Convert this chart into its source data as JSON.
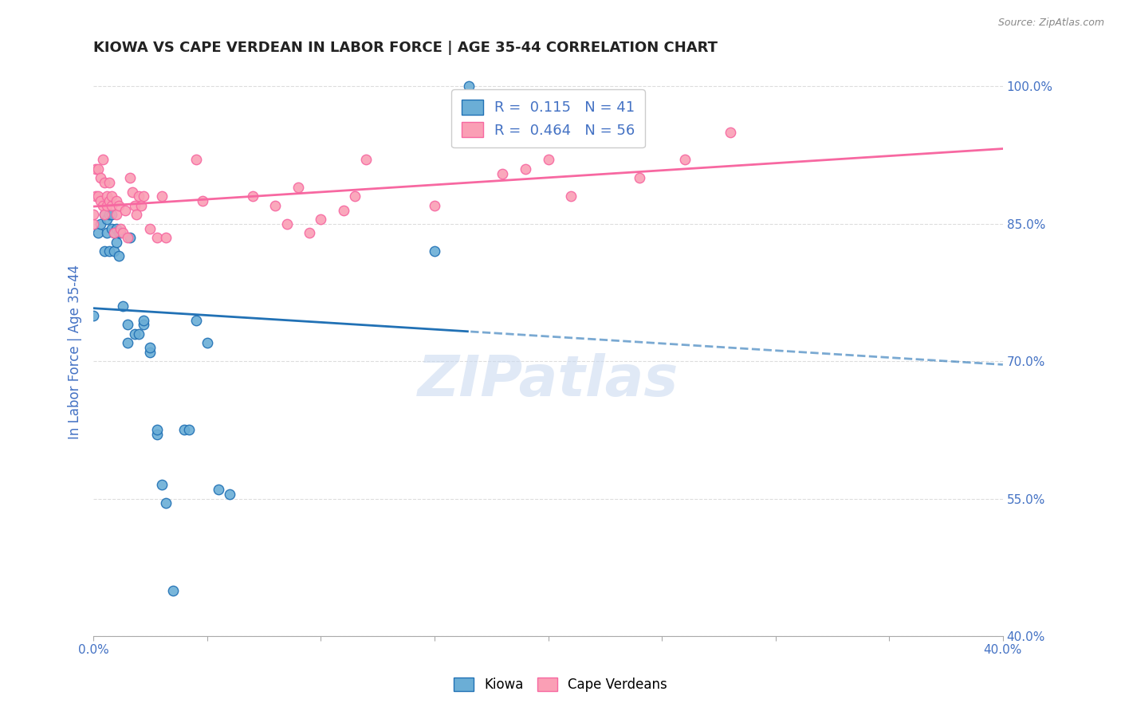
{
  "title": "KIOWA VS CAPE VERDEAN IN LABOR FORCE | AGE 35-44 CORRELATION CHART",
  "source": "Source: ZipAtlas.com",
  "ylabel": "In Labor Force | Age 35-44",
  "xlim": [
    0.0,
    0.4
  ],
  "ylim": [
    0.4,
    1.02
  ],
  "yticks_right": [
    0.4,
    0.55,
    0.7,
    0.85,
    1.0
  ],
  "ytick_right_labels": [
    "40.0%",
    "55.0%",
    "70.0%",
    "85.0%",
    "100.0%"
  ],
  "legend_r_blue": "0.115",
  "legend_n_blue": "41",
  "legend_r_pink": "0.464",
  "legend_n_pink": "56",
  "blue_color": "#6baed6",
  "pink_color": "#fa9fb5",
  "blue_line_color": "#2171b5",
  "pink_line_color": "#f768a1",
  "title_color": "#222222",
  "axis_label_color": "#4472c4",
  "watermark": "ZIPatlas",
  "kiowa_x": [
    0.0,
    0.002,
    0.003,
    0.005,
    0.005,
    0.006,
    0.006,
    0.007,
    0.007,
    0.008,
    0.008,
    0.009,
    0.009,
    0.01,
    0.01,
    0.011,
    0.011,
    0.012,
    0.013,
    0.015,
    0.015,
    0.016,
    0.018,
    0.02,
    0.022,
    0.022,
    0.025,
    0.025,
    0.028,
    0.028,
    0.03,
    0.032,
    0.035,
    0.04,
    0.042,
    0.045,
    0.05,
    0.055,
    0.06,
    0.15,
    0.165
  ],
  "kiowa_y": [
    0.75,
    0.84,
    0.85,
    0.82,
    0.86,
    0.84,
    0.855,
    0.82,
    0.86,
    0.845,
    0.86,
    0.82,
    0.84,
    0.83,
    0.845,
    0.815,
    0.84,
    0.84,
    0.76,
    0.72,
    0.74,
    0.835,
    0.73,
    0.73,
    0.74,
    0.745,
    0.71,
    0.715,
    0.62,
    0.625,
    0.565,
    0.545,
    0.45,
    0.625,
    0.625,
    0.745,
    0.72,
    0.56,
    0.555,
    0.82,
    1.0
  ],
  "cape_x": [
    0.0,
    0.0,
    0.001,
    0.001,
    0.002,
    0.002,
    0.003,
    0.003,
    0.004,
    0.004,
    0.005,
    0.005,
    0.006,
    0.006,
    0.007,
    0.007,
    0.008,
    0.008,
    0.009,
    0.01,
    0.01,
    0.011,
    0.012,
    0.013,
    0.014,
    0.015,
    0.016,
    0.017,
    0.018,
    0.019,
    0.02,
    0.021,
    0.022,
    0.025,
    0.028,
    0.03,
    0.032,
    0.045,
    0.048,
    0.07,
    0.08,
    0.085,
    0.09,
    0.095,
    0.1,
    0.11,
    0.115,
    0.12,
    0.15,
    0.18,
    0.19,
    0.2,
    0.21,
    0.24,
    0.26,
    0.28
  ],
  "cape_y": [
    0.85,
    0.86,
    0.88,
    0.91,
    0.88,
    0.91,
    0.875,
    0.9,
    0.87,
    0.92,
    0.86,
    0.895,
    0.87,
    0.88,
    0.895,
    0.875,
    0.87,
    0.88,
    0.84,
    0.86,
    0.875,
    0.87,
    0.845,
    0.84,
    0.865,
    0.835,
    0.9,
    0.885,
    0.87,
    0.86,
    0.88,
    0.87,
    0.88,
    0.845,
    0.835,
    0.88,
    0.835,
    0.92,
    0.875,
    0.88,
    0.87,
    0.85,
    0.89,
    0.84,
    0.855,
    0.865,
    0.88,
    0.92,
    0.87,
    0.905,
    0.91,
    0.92,
    0.88,
    0.9,
    0.92,
    0.95
  ],
  "bg_color": "#ffffff",
  "grid_color": "#dddddd"
}
